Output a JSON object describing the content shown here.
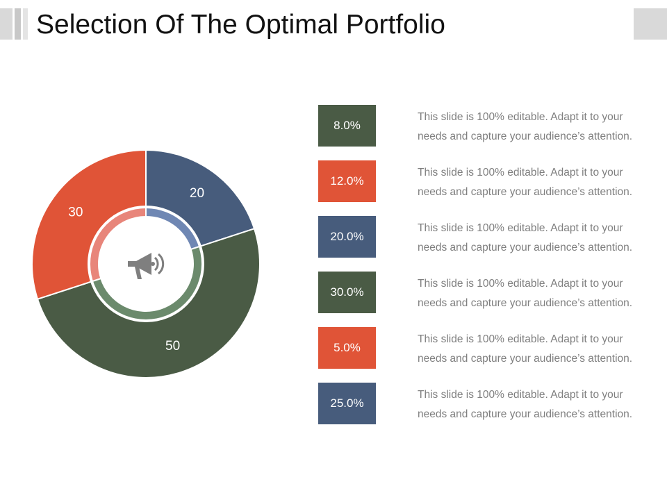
{
  "header": {
    "title": "Selection Of The Optimal Portfolio"
  },
  "colors": {
    "green": "#4a5b45",
    "red": "#e05437",
    "blue": "#475c7c",
    "inner_green": "#6b8a6c",
    "inner_red": "#e8857a",
    "inner_blue": "#6f87b3",
    "icon": "#7f7f7f"
  },
  "center_icon": "megaphone-icon",
  "chart_data": {
    "type": "pie",
    "categories": [
      "",
      "",
      ""
    ],
    "values": [
      20,
      50,
      30
    ],
    "labels": [
      "20",
      "50",
      "30"
    ],
    "colors": [
      "#475c7c",
      "#4a5b45",
      "#e05437"
    ],
    "inner_colors": [
      "#6f87b3",
      "#6b8a6c",
      "#e8857a"
    ],
    "start": "top",
    "direction": "clockwise",
    "title": "",
    "legend": "none"
  },
  "legend_items": [
    {
      "value": "8.0%",
      "color": "#4a5b45",
      "text": "This slide is 100% editable. Adapt it to your needs and capture your audience’s attention."
    },
    {
      "value": "12.0%",
      "color": "#e05437",
      "text": "This slide is 100% editable. Adapt it to your needs and capture your audience’s attention."
    },
    {
      "value": "20.0%",
      "color": "#475c7c",
      "text": "This slide is 100% editable. Adapt it to your needs and capture your audience’s attention."
    },
    {
      "value": "30.0%",
      "color": "#4a5b45",
      "text": "This slide is 100% editable. Adapt it to your needs and capture your audience’s attention."
    },
    {
      "value": "5.0%",
      "color": "#e05437",
      "text": "This slide is 100% editable. Adapt it to your needs and capture your audience’s attention."
    },
    {
      "value": "25.0%",
      "color": "#475c7c",
      "text": "This slide is 100% editable. Adapt it to your needs and capture your audience’s attention."
    }
  ]
}
